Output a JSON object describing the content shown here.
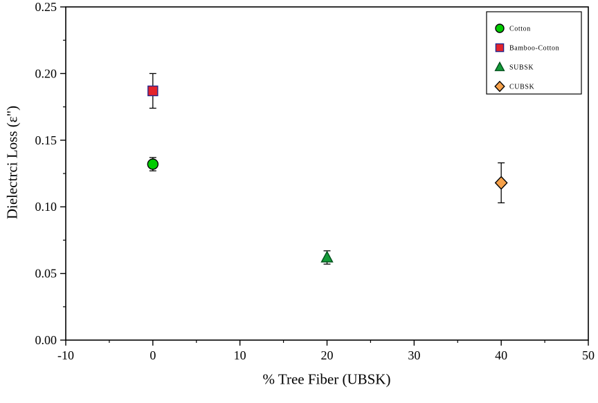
{
  "figure": {
    "background": "#ffffff"
  },
  "chart_data": {
    "type": "scatter",
    "title": "",
    "xlabel": "% Tree Fiber (UBSK)",
    "ylabel": "Dielectrci Loss (ε\")",
    "xlim": [
      -10,
      50
    ],
    "ylim": [
      0,
      0.25
    ],
    "x_major_ticks": [
      -10,
      0,
      10,
      20,
      30,
      40,
      50
    ],
    "x_tick_labels": [
      "-10",
      "0",
      "10",
      "20",
      "30",
      "40",
      "50"
    ],
    "x_minor_step": 5,
    "y_major_ticks": [
      0,
      0.05,
      0.1,
      0.15,
      0.2,
      0.25
    ],
    "y_tick_labels": [
      "0.00",
      "0.05",
      "0.10",
      "0.15",
      "0.20",
      "0.25"
    ],
    "y_minor_step": 0.025,
    "grid": false,
    "legend_position": "top-right",
    "error_bar_color": "#000000",
    "series": [
      {
        "name": "Cotton",
        "marker": "circle",
        "fill": "#00cc00",
        "edge": "#000000",
        "points": [
          {
            "x": 0,
            "y": 0.132,
            "yerr": 0.005
          }
        ]
      },
      {
        "name": "Bamboo-Cotton",
        "marker": "square",
        "fill": "#e3242b",
        "edge": "#26268c",
        "points": [
          {
            "x": 0,
            "y": 0.187,
            "yerr": 0.013
          }
        ]
      },
      {
        "name": "SUBSK",
        "marker": "triangle",
        "fill": "#149a38",
        "edge": "#004d1a",
        "points": [
          {
            "x": 20,
            "y": 0.062,
            "yerr": 0.005
          }
        ]
      },
      {
        "name": "CUBSK",
        "marker": "diamond",
        "fill": "#f6a14a",
        "edge": "#000000",
        "points": [
          {
            "x": 40,
            "y": 0.118,
            "yerr": 0.015
          }
        ]
      }
    ]
  }
}
